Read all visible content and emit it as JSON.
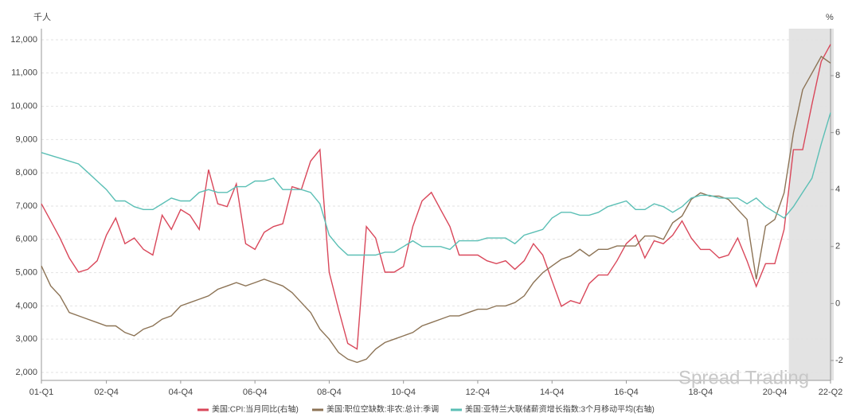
{
  "chart_data": {
    "type": "line",
    "y_unit_label": "千人",
    "y2_unit_label": "%",
    "watermark": "Spread Trading",
    "categories": [
      "01-Q1",
      null,
      null,
      null,
      null,
      null,
      null,
      "02-Q4",
      null,
      null,
      null,
      null,
      null,
      null,
      null,
      "04-Q4",
      null,
      null,
      null,
      null,
      null,
      null,
      null,
      "06-Q4",
      null,
      null,
      null,
      null,
      null,
      null,
      null,
      "08-Q4",
      null,
      null,
      null,
      null,
      null,
      null,
      null,
      "10-Q4",
      null,
      null,
      null,
      null,
      null,
      null,
      null,
      "12-Q4",
      null,
      null,
      null,
      null,
      null,
      null,
      null,
      "14-Q4",
      null,
      null,
      null,
      null,
      null,
      null,
      null,
      "16-Q4",
      null,
      null,
      null,
      null,
      null,
      null,
      null,
      "18-Q4",
      null,
      null,
      null,
      null,
      null,
      null,
      null,
      "20-Q4",
      null,
      null,
      null,
      null,
      null,
      "22-Q2"
    ],
    "ylim": [
      1760,
      12335
    ],
    "yticks": [
      {
        "value": 2000,
        "label": "2,000"
      },
      {
        "value": 3000,
        "label": "3,000"
      },
      {
        "value": 4000,
        "label": "4,000"
      },
      {
        "value": 5000,
        "label": "5,000"
      },
      {
        "value": 6000,
        "label": "6,000"
      },
      {
        "value": 7000,
        "label": "7,000"
      },
      {
        "value": 8000,
        "label": "8,000"
      },
      {
        "value": 9000,
        "label": "9,000"
      },
      {
        "value": 10000,
        "label": "10,000"
      },
      {
        "value": 11000,
        "label": "11,000"
      },
      {
        "value": 12000,
        "label": "12,000"
      }
    ],
    "y2lim": [
      -2.7,
      9.65
    ],
    "y2ticks": [
      -2,
      0,
      2,
      4,
      6,
      8
    ],
    "grid": true,
    "shaded": {
      "from": 80,
      "to": 85,
      "color": "#e3e3e3"
    },
    "legend": "bottom",
    "series": [
      {
        "name": "美国:CPI:当月同比(右轴)",
        "color": "#d9475a",
        "axis": "y2",
        "values": [
          3.5,
          2.9,
          2.3,
          1.6,
          1.1,
          1.2,
          1.5,
          2.4,
          3.0,
          2.1,
          2.3,
          1.9,
          1.7,
          3.1,
          2.6,
          3.3,
          3.1,
          2.6,
          4.7,
          3.5,
          3.4,
          4.2,
          2.1,
          1.9,
          2.5,
          2.7,
          2.8,
          4.1,
          4.0,
          5.0,
          5.4,
          1.1,
          -0.2,
          -1.4,
          -1.6,
          2.7,
          2.3,
          1.1,
          1.1,
          1.3,
          2.7,
          3.6,
          3.9,
          3.3,
          2.7,
          1.7,
          1.7,
          1.7,
          1.5,
          1.4,
          1.5,
          1.2,
          1.5,
          2.1,
          1.7,
          0.8,
          -0.1,
          0.1,
          0.0,
          0.7,
          1.0,
          1.0,
          1.5,
          2.1,
          2.4,
          1.6,
          2.2,
          2.1,
          2.4,
          2.9,
          2.3,
          1.9,
          1.9,
          1.6,
          1.7,
          2.3,
          1.5,
          0.6,
          1.4,
          1.4,
          2.6,
          5.4,
          5.4,
          7.0,
          8.5,
          9.1
        ]
      },
      {
        "name": "美国:职位空缺数:非农:总计:季调",
        "color": "#8c7355",
        "axis": "y",
        "values": [
          5200,
          4600,
          4300,
          3800,
          3700,
          3600,
          3500,
          3400,
          3400,
          3200,
          3100,
          3300,
          3400,
          3600,
          3700,
          4000,
          4100,
          4200,
          4300,
          4500,
          4600,
          4700,
          4600,
          4700,
          4800,
          4700,
          4600,
          4400,
          4100,
          3800,
          3300,
          3000,
          2600,
          2400,
          2300,
          2400,
          2700,
          2900,
          3000,
          3100,
          3200,
          3400,
          3500,
          3600,
          3700,
          3700,
          3800,
          3900,
          3900,
          4000,
          4000,
          4100,
          4300,
          4700,
          5000,
          5200,
          5400,
          5500,
          5700,
          5500,
          5700,
          5700,
          5800,
          5800,
          5800,
          6100,
          6100,
          6000,
          6500,
          6700,
          7200,
          7400,
          7300,
          7300,
          7200,
          6900,
          6600,
          4800,
          6400,
          6600,
          7400,
          9200,
          10500,
          11000,
          11500,
          11300
        ]
      },
      {
        "name": "美国:亚特兰大联储薪资增长指数:3个月移动平均(右轴)",
        "color": "#5bbfb5",
        "axis": "y2",
        "values": [
          5.3,
          5.2,
          5.1,
          5.0,
          4.9,
          4.6,
          4.3,
          4.0,
          3.6,
          3.6,
          3.4,
          3.3,
          3.3,
          3.5,
          3.7,
          3.6,
          3.6,
          3.9,
          4.0,
          3.9,
          3.9,
          4.1,
          4.1,
          4.3,
          4.3,
          4.4,
          4.0,
          4.0,
          4.0,
          3.9,
          3.5,
          2.4,
          2.0,
          1.7,
          1.7,
          1.7,
          1.7,
          1.8,
          1.8,
          2.0,
          2.2,
          2.0,
          2.0,
          2.0,
          1.9,
          2.2,
          2.2,
          2.2,
          2.3,
          2.3,
          2.3,
          2.1,
          2.4,
          2.5,
          2.6,
          3.0,
          3.2,
          3.2,
          3.1,
          3.1,
          3.2,
          3.4,
          3.5,
          3.6,
          3.3,
          3.3,
          3.5,
          3.4,
          3.2,
          3.4,
          3.7,
          3.8,
          3.8,
          3.7,
          3.7,
          3.7,
          3.5,
          3.7,
          3.4,
          3.2,
          3.0,
          3.4,
          3.9,
          4.4,
          5.6,
          6.7
        ]
      }
    ]
  }
}
